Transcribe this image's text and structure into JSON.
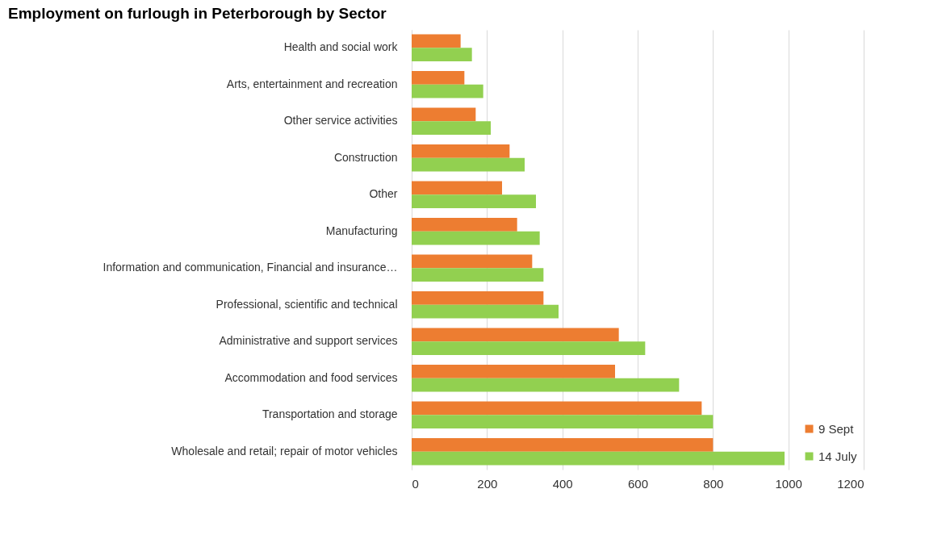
{
  "chart_data": {
    "type": "bar",
    "orientation": "horizontal",
    "title": "Employment on furlough in Peterborough by Sector",
    "categories": [
      "Health and social work",
      "Arts, entertainment and recreation",
      "Other service activities",
      "Construction",
      "Other",
      "Manufacturing",
      "Information and communication, Financial and insurance…",
      "Professional,  scientific and technical",
      "Administrative and support services",
      "Accommodation and food services",
      "Transportation and storage",
      "Wholesale and retail; repair of motor vehicles"
    ],
    "series": [
      {
        "name": "9 Sept",
        "color": "#ed7d31",
        "values": [
          130,
          140,
          170,
          260,
          240,
          280,
          320,
          350,
          550,
          540,
          770,
          800
        ]
      },
      {
        "name": "14 July",
        "color": "#92d050",
        "values": [
          160,
          190,
          210,
          300,
          330,
          340,
          350,
          390,
          620,
          710,
          800,
          990
        ]
      }
    ],
    "xlim": [
      0,
      1200
    ],
    "xticks": [
      0,
      200,
      400,
      600,
      800,
      1000,
      1200
    ],
    "grid": "x",
    "legend": "bottom right"
  }
}
